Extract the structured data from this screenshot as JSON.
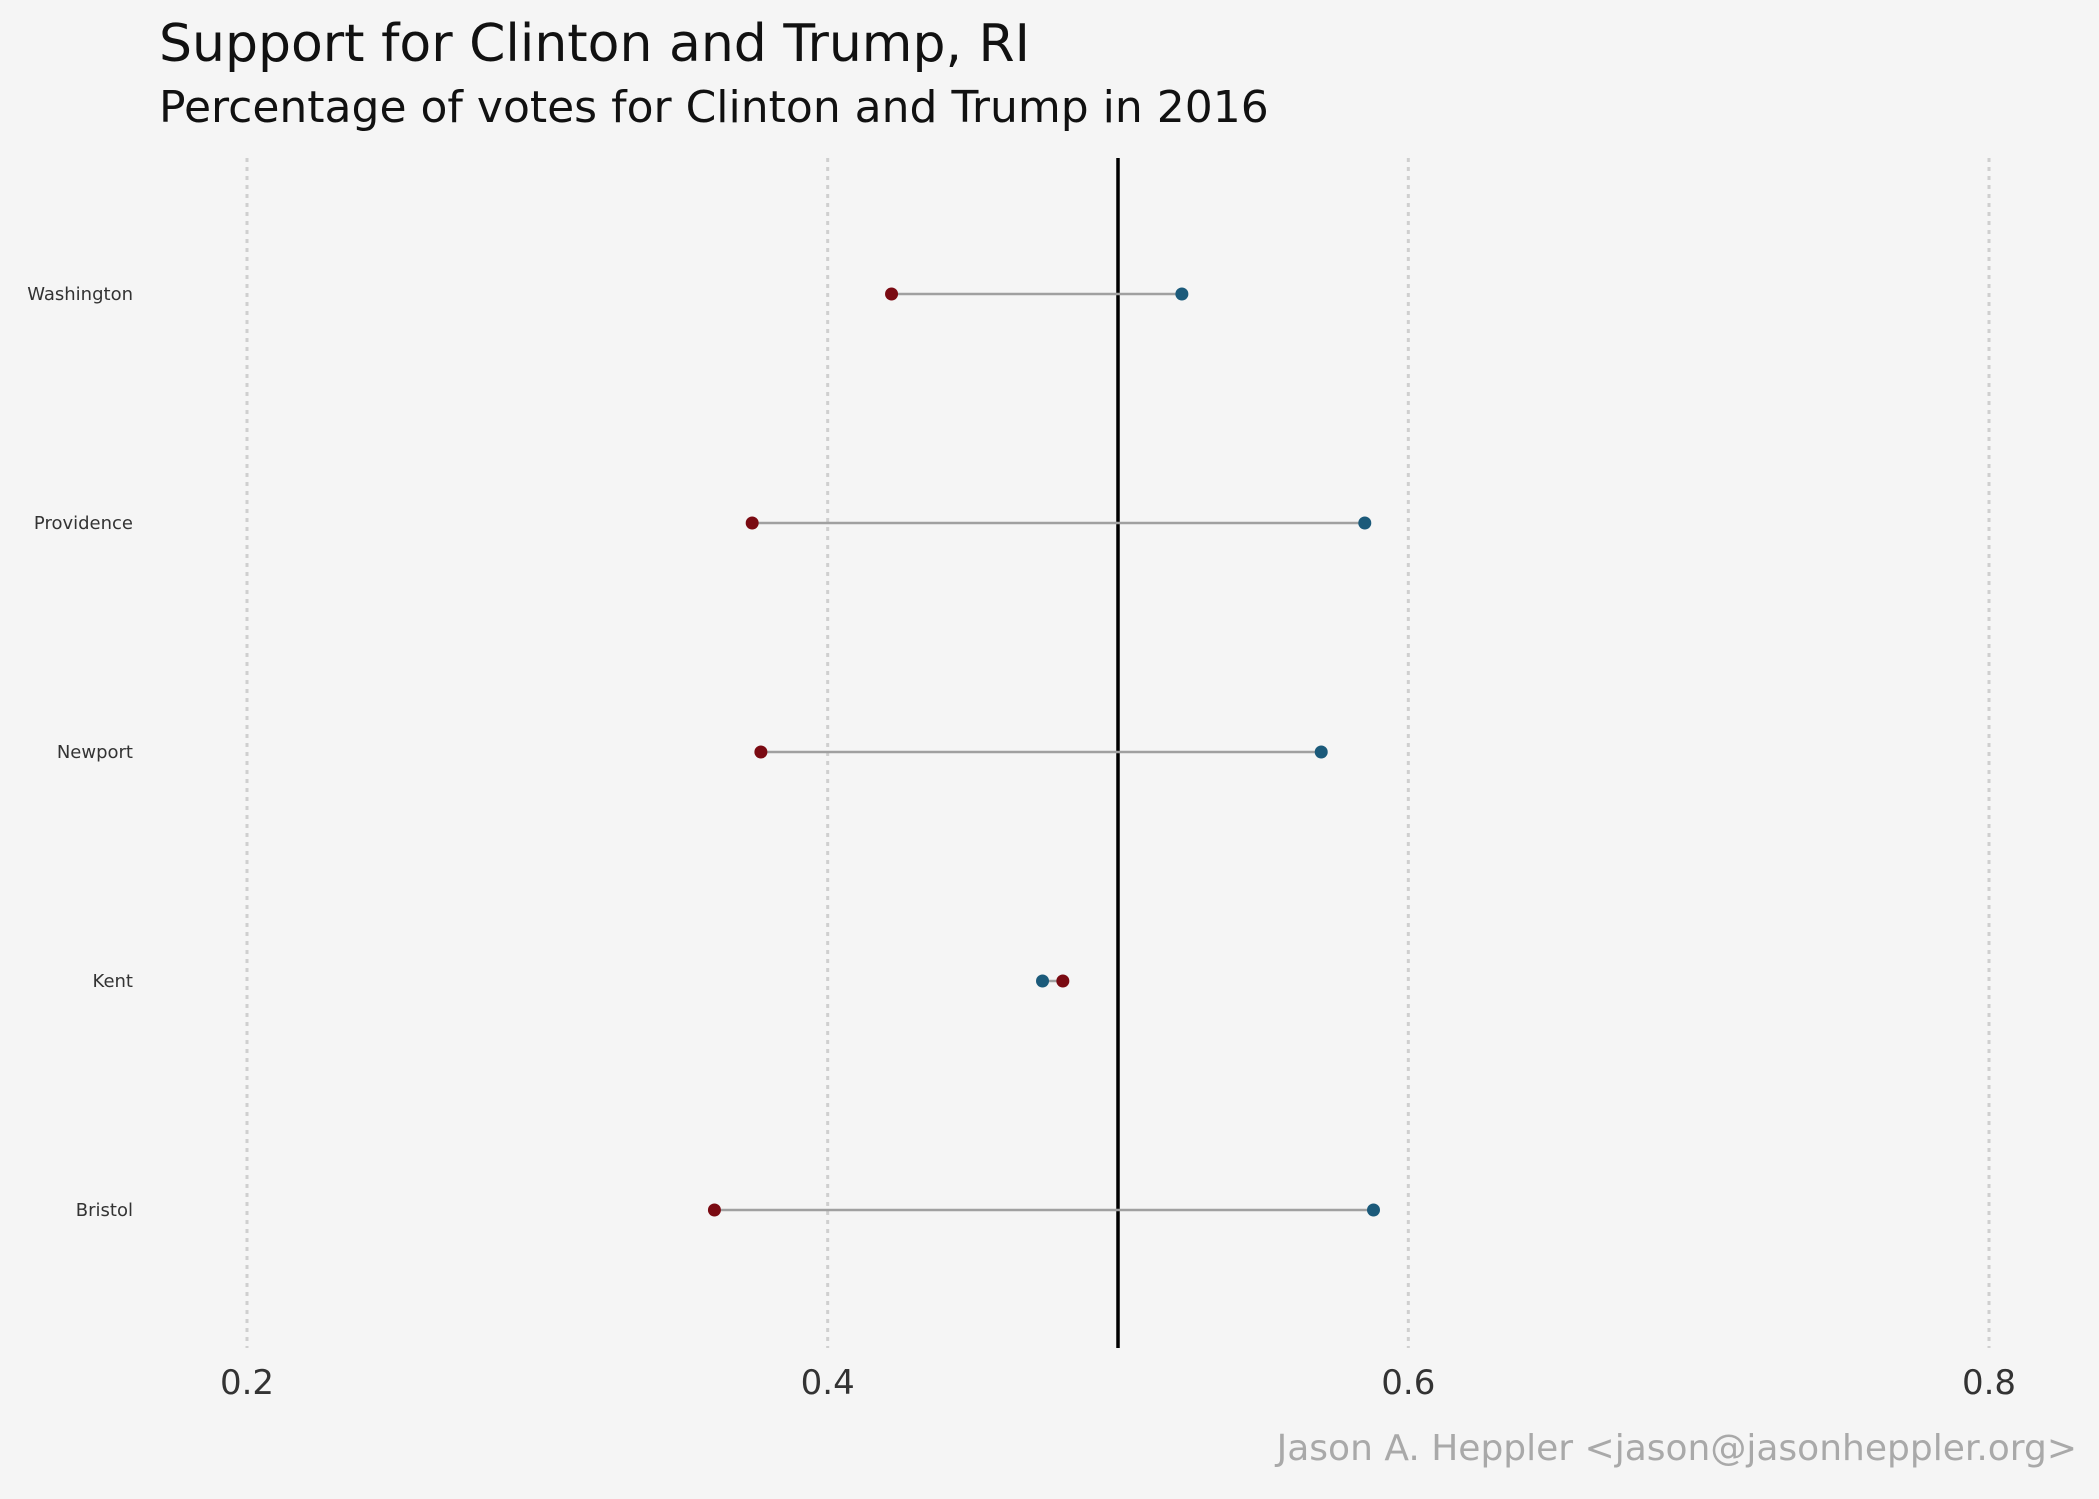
{
  "title": "Support for Clinton and Trump,  RI",
  "subtitle": "Percentage of votes for Clinton and Trump in 2016",
  "caption": "Jason A. Heppler <jason@jasonheppler.org>",
  "colors": {
    "clinton": "#1b5a7a",
    "trump": "#7a0a12",
    "segment": "#a0a0a0",
    "reference_line": "#000000",
    "grid": "#cfcfcf",
    "background": "#f5f5f5"
  },
  "chart_data": {
    "type": "scatter",
    "subtype": "dumbbell",
    "title": "Support for Clinton and Trump,  RI",
    "subtitle": "Percentage of votes for Clinton and Trump in 2016",
    "xlabel": "",
    "ylabel": "",
    "xlim": [
      0.17,
      0.82
    ],
    "x_ticks": [
      "0.2",
      "0.4",
      "0.6",
      "0.8"
    ],
    "x_tick_values": [
      0.2,
      0.4,
      0.6,
      0.8
    ],
    "reference_x": 0.5,
    "grid": "vertical dotted",
    "legend": "none",
    "categories": [
      "Washington",
      "Providence",
      "Newport",
      "Kent",
      "Bristol"
    ],
    "series": [
      {
        "color_key": "trump",
        "values": [
          0.422,
          0.374,
          0.377,
          0.481,
          0.361
        ]
      },
      {
        "color_key": "clinton",
        "values": [
          0.522,
          0.585,
          0.57,
          0.474,
          0.588
        ]
      }
    ]
  }
}
